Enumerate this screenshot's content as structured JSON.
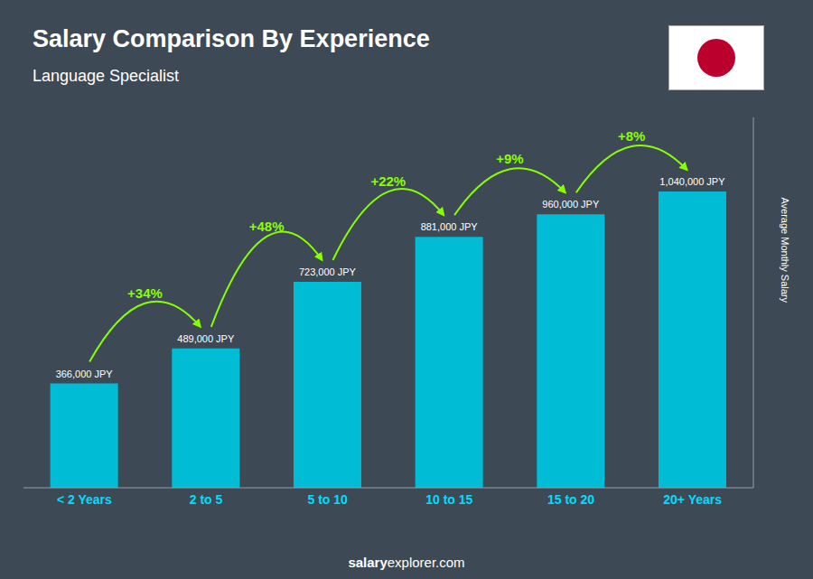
{
  "chart_data": {
    "type": "bar",
    "title": "Salary Comparison By Experience",
    "subtitle": "Language Specialist",
    "categories": [
      "< 2 Years",
      "2 to 5",
      "5 to 10",
      "10 to 15",
      "15 to 20",
      "20+ Years"
    ],
    "values": [
      366000,
      489000,
      723000,
      881000,
      960000,
      1040000
    ],
    "value_labels": [
      "366,000 JPY",
      "489,000 JPY",
      "723,000 JPY",
      "881,000 JPY",
      "960,000 JPY",
      "1,040,000 JPY"
    ],
    "data_labels": true,
    "color": "#00bcd4",
    "ylabel": "Average Monthly Salary",
    "ylim": [
      0,
      1300000
    ],
    "tick_labels": "x",
    "grid": false,
    "annotations": [
      "+34%",
      "+48%",
      "+22%",
      "+9%",
      "+8%"
    ],
    "footer": [
      "salary",
      "explorer.com"
    ]
  }
}
